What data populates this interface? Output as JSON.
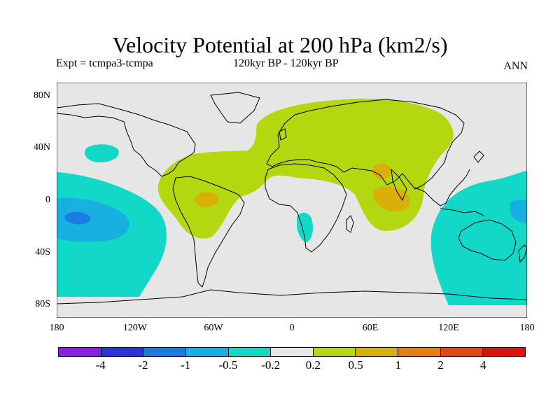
{
  "title": "Velocity Potential at 200 hPa (km2/s)",
  "subtitle_left": "Expt = tcmpa3-tcmpa",
  "subtitle_center": "120kyr BP - 120kyr BP",
  "subtitle_right": "ANN",
  "y_axis": {
    "labels": [
      "80N",
      "40N",
      "0",
      "40S",
      "80S"
    ],
    "values": [
      80,
      40,
      0,
      -40,
      -80
    ],
    "range": [
      -90,
      90
    ]
  },
  "x_axis": {
    "labels": [
      "180",
      "120W",
      "60W",
      "0",
      "60E",
      "120E",
      "180"
    ],
    "values": [
      -180,
      -120,
      -60,
      0,
      60,
      120,
      180
    ],
    "range": [
      -180,
      180
    ]
  },
  "colorbar": {
    "colors": [
      "#8a1ee0",
      "#2c34d8",
      "#1a7ee0",
      "#18b0e0",
      "#12d8c8",
      "#e6e6e6",
      "#b4d810",
      "#d8b008",
      "#e08010",
      "#e04a10",
      "#e01010"
    ],
    "labels": [
      "-4",
      "-2",
      "-1",
      "-0.5",
      "-0.2",
      "0.2",
      "0.5",
      "1",
      "2",
      "4"
    ]
  },
  "colors": {
    "background": "#e6e6e6",
    "coast": "#000000"
  }
}
